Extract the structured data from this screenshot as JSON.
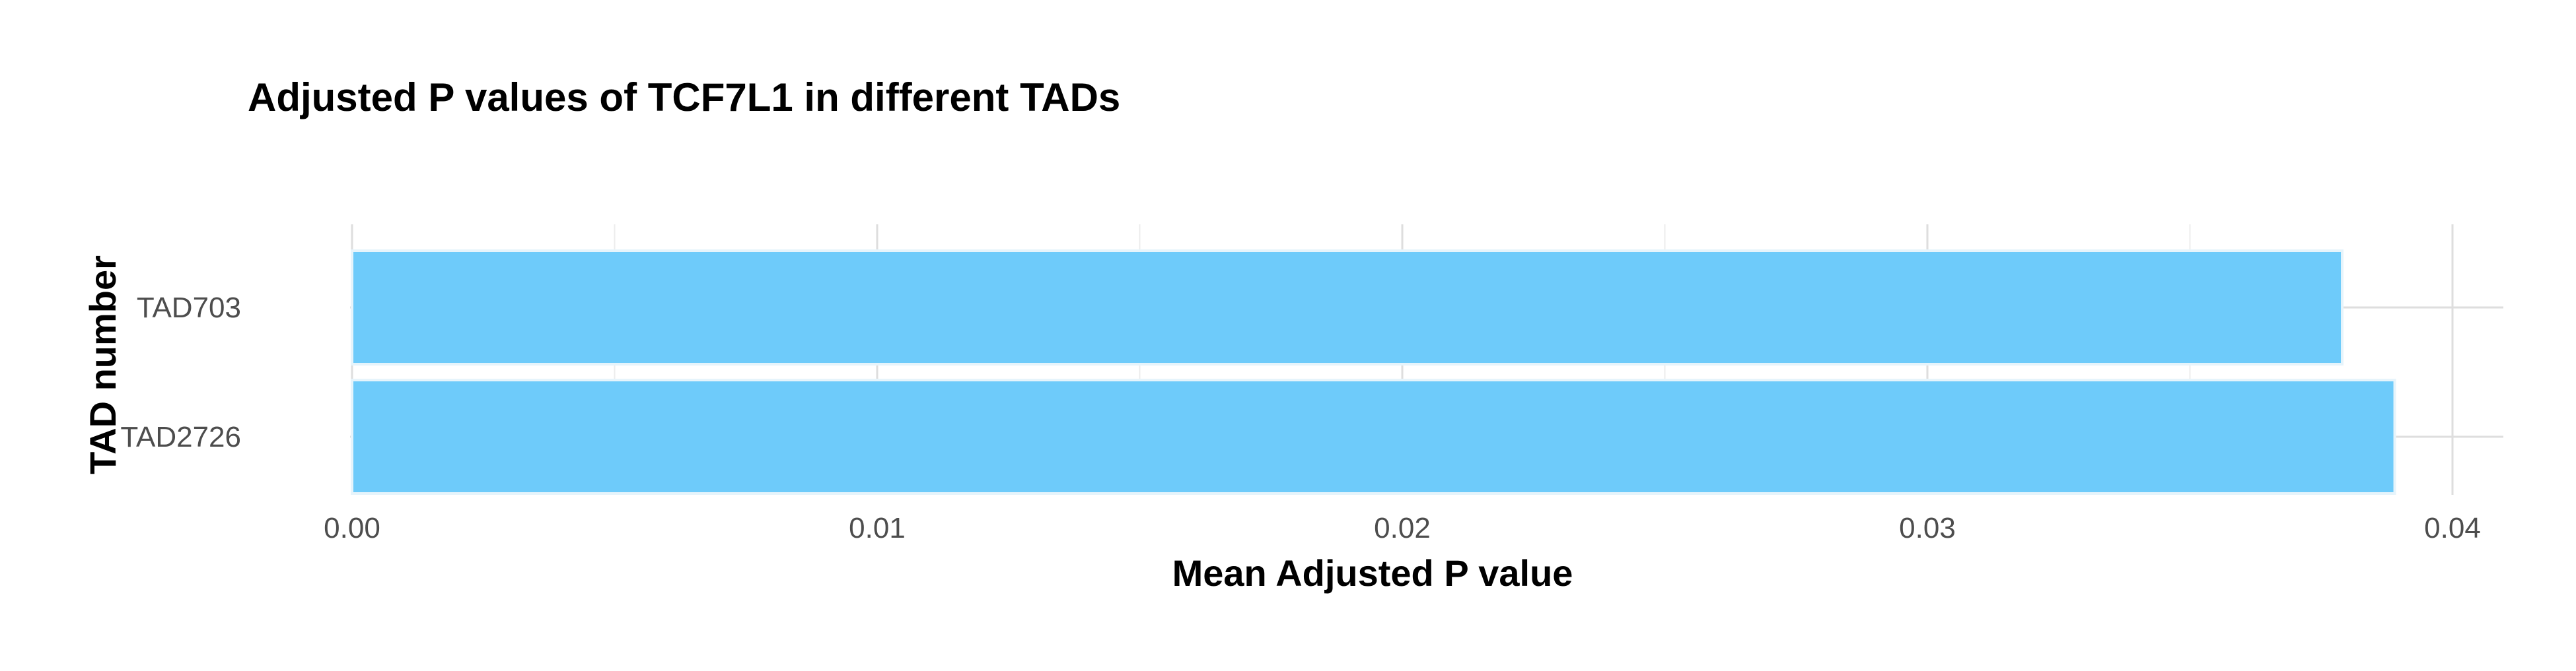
{
  "chart_data": {
    "type": "bar",
    "orientation": "horizontal",
    "title": "Adjusted P values of TCF7L1 in different TADs",
    "xlabel": "Mean Adjusted P value",
    "ylabel": "TAD number",
    "categories": [
      "TAD703",
      "TAD2726"
    ],
    "values": [
      0.0379,
      0.0389
    ],
    "xlim": [
      0,
      0.041
    ],
    "xticks": [
      "0.00",
      "0.01",
      "0.02",
      "0.03",
      "0.04"
    ],
    "grid": true,
    "legend": "none",
    "bar_color": "#6ecbfa"
  }
}
